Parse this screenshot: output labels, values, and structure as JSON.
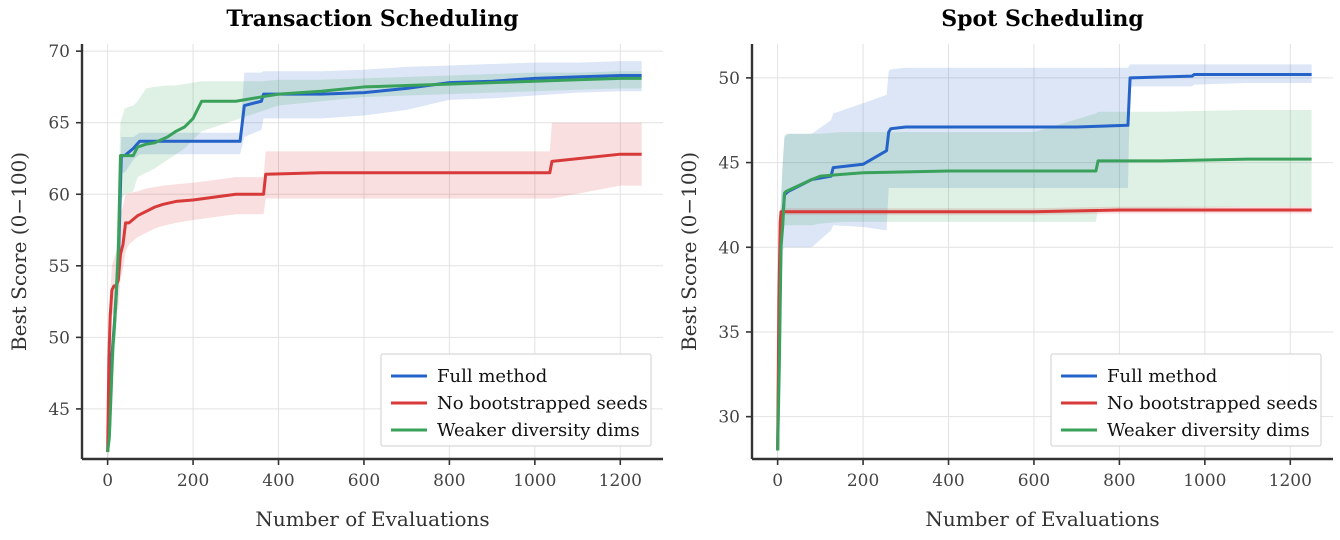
{
  "chart_data": [
    {
      "type": "line",
      "title": "Transaction Scheduling",
      "xlabel": "Number of Evaluations",
      "ylabel": "Best Score (0−100)",
      "xlim": [
        -60,
        1300
      ],
      "ylim": [
        41.5,
        70.5
      ],
      "xticks": [
        0,
        200,
        400,
        600,
        800,
        1000,
        1200
      ],
      "yticks": [
        45,
        50,
        55,
        60,
        65,
        70
      ],
      "grid": true,
      "legend_position": "lower right",
      "series": [
        {
          "name": "Full method",
          "color": "#2563c9",
          "x": [
            0,
            5,
            8,
            12,
            16,
            20,
            26,
            32,
            40,
            60,
            75,
            100,
            150,
            200,
            250,
            310,
            320,
            360,
            365,
            500,
            600,
            700,
            800,
            900,
            1000,
            1100,
            1200,
            1250
          ],
          "y": [
            42,
            44,
            48,
            49.5,
            51,
            53,
            56,
            62.7,
            62.7,
            63.2,
            63.7,
            63.7,
            63.7,
            63.7,
            63.7,
            63.7,
            66.2,
            66.5,
            67.0,
            67.0,
            67.1,
            67.4,
            67.8,
            67.9,
            68.1,
            68.2,
            68.3,
            68.3
          ],
          "upper": [
            43,
            45,
            49.5,
            51,
            53,
            55,
            58,
            64,
            64,
            64,
            64.3,
            64.3,
            64.3,
            64.3,
            64.3,
            64.3,
            68.5,
            68.5,
            68.6,
            68.6,
            68.7,
            68.9,
            69.0,
            69.1,
            69.2,
            69.2,
            69.3,
            69.3
          ],
          "lower": [
            41.5,
            43,
            46.5,
            48,
            49.5,
            51,
            54,
            61.5,
            61.5,
            62.4,
            62.8,
            62.8,
            62.8,
            62.8,
            62.8,
            62.8,
            64.0,
            64.5,
            65.3,
            65.3,
            65.5,
            65.9,
            66.6,
            66.7,
            66.9,
            67.1,
            67.2,
            67.2
          ]
        },
        {
          "name": "No bootstrapped seeds",
          "color": "#d83a3a",
          "x": [
            0,
            3,
            6,
            10,
            15,
            20,
            25,
            30,
            36,
            42,
            50,
            70,
            90,
            110,
            130,
            160,
            200,
            250,
            300,
            365,
            370,
            500,
            600,
            700,
            800,
            900,
            1000,
            1035,
            1040,
            1200,
            1250
          ],
          "y": [
            42,
            48.5,
            51.5,
            53.3,
            53.6,
            53.6,
            54.0,
            55.8,
            56.5,
            58.0,
            58.0,
            58.5,
            58.8,
            59.1,
            59.3,
            59.5,
            59.6,
            59.8,
            60.0,
            60.0,
            61.4,
            61.5,
            61.5,
            61.5,
            61.5,
            61.5,
            61.5,
            61.5,
            62.3,
            62.8,
            62.8
          ],
          "upper": [
            43,
            50,
            53,
            55,
            55.5,
            56,
            57,
            58.5,
            59.2,
            60.0,
            60.1,
            60.2,
            60.4,
            60.5,
            60.6,
            60.7,
            60.8,
            61.0,
            61.2,
            61.2,
            63.0,
            63.0,
            63.0,
            63.0,
            63.0,
            63.0,
            63.0,
            63.0,
            65.0,
            65.0,
            65.0
          ],
          "lower": [
            41.5,
            47,
            50,
            51.5,
            51.8,
            51.8,
            52.0,
            54.0,
            54.8,
            56.0,
            56.5,
            57.0,
            57.3,
            57.6,
            57.8,
            58.0,
            58.2,
            58.4,
            58.6,
            58.6,
            59.7,
            59.7,
            59.7,
            59.7,
            59.7,
            59.7,
            59.7,
            59.7,
            59.7,
            60.6,
            60.6
          ]
        },
        {
          "name": "Weaker diversity dims",
          "color": "#3aa15b",
          "x": [
            0,
            4,
            8,
            12,
            16,
            20,
            25,
            30,
            40,
            60,
            70,
            90,
            110,
            140,
            160,
            180,
            200,
            220,
            300,
            360,
            400,
            500,
            600,
            700,
            800,
            900,
            1000,
            1100,
            1200,
            1250
          ],
          "y": [
            42,
            43,
            46,
            49.2,
            50.8,
            53,
            56,
            62.7,
            62.7,
            62.7,
            63.3,
            63.5,
            63.6,
            64.0,
            64.4,
            64.7,
            65.3,
            66.5,
            66.5,
            66.8,
            67.0,
            67.2,
            67.5,
            67.6,
            67.7,
            67.8,
            67.9,
            68.0,
            68.1,
            68.1
          ],
          "upper": [
            43,
            45,
            48,
            51,
            53,
            56,
            60,
            65,
            66,
            66.2,
            66.5,
            67.4,
            67.5,
            67.6,
            67.6,
            67.7,
            67.8,
            67.9,
            67.9,
            67.9,
            68.0,
            68.0,
            68.1,
            68.2,
            68.3,
            68.4,
            68.5,
            68.5,
            68.6,
            68.6
          ],
          "lower": [
            41.5,
            42,
            44.5,
            47,
            48.5,
            50.5,
            53.5,
            59.5,
            60,
            60.2,
            61.2,
            61.5,
            61.8,
            62.4,
            62.8,
            63.2,
            63.8,
            64.4,
            65.2,
            65.8,
            66.2,
            66.5,
            66.8,
            66.9,
            67.0,
            67.1,
            67.2,
            67.3,
            67.4,
            67.4
          ]
        }
      ]
    },
    {
      "type": "line",
      "title": "Spot Scheduling",
      "xlabel": "Number of Evaluations",
      "ylabel": "Best Score (0−100)",
      "xlim": [
        -60,
        1300
      ],
      "ylim": [
        27.5,
        52
      ],
      "xticks": [
        0,
        200,
        400,
        600,
        800,
        1000,
        1200
      ],
      "yticks": [
        30,
        35,
        40,
        45,
        50
      ],
      "grid": true,
      "legend_position": "lower right",
      "series": [
        {
          "name": "Full method",
          "color": "#2563c9",
          "x": [
            0,
            4,
            8,
            12,
            16,
            25,
            80,
            125,
            130,
            200,
            255,
            260,
            265,
            300,
            500,
            700,
            820,
            825,
            970,
            975,
            1100,
            1250
          ],
          "y": [
            28,
            35,
            40.5,
            41.7,
            43.1,
            43.3,
            44.0,
            44.2,
            44.7,
            44.9,
            45.7,
            46.8,
            47.0,
            47.1,
            47.1,
            47.1,
            47.2,
            50.0,
            50.1,
            50.2,
            50.2,
            50.2
          ],
          "upper": [
            29,
            38,
            43,
            45,
            46.5,
            46.7,
            46.7,
            47.5,
            47.9,
            48.5,
            49.0,
            50.4,
            50.5,
            50.6,
            50.6,
            50.6,
            50.6,
            50.8,
            50.8,
            50.8,
            50.8,
            50.8
          ],
          "lower": [
            27.5,
            32,
            38,
            39.8,
            40.0,
            40.0,
            40.0,
            41.0,
            41.3,
            41.2,
            41.0,
            43.5,
            43.5,
            43.5,
            43.5,
            43.5,
            43.5,
            49.5,
            49.5,
            49.6,
            49.7,
            49.7
          ]
        },
        {
          "name": "No bootstrapped seeds",
          "color": "#d83a3a",
          "x": [
            0,
            3,
            6,
            8,
            200,
            400,
            600,
            800,
            1000,
            1250
          ],
          "y": [
            28,
            37,
            41.5,
            42.1,
            42.1,
            42.1,
            42.1,
            42.2,
            42.2,
            42.2
          ],
          "upper": [
            29,
            40,
            42.5,
            42.3,
            42.3,
            42.3,
            42.3,
            42.4,
            42.4,
            42.4
          ],
          "lower": [
            27.5,
            33,
            40,
            41.9,
            41.9,
            41.9,
            41.9,
            42.0,
            42.0,
            42.0
          ],
          "y_labels_hidden": true
        },
        {
          "name": "Weaker diversity dims",
          "color": "#3aa15b",
          "x": [
            0,
            4,
            8,
            12,
            16,
            20,
            80,
            100,
            150,
            200,
            400,
            600,
            745,
            750,
            900,
            1100,
            1250
          ],
          "y": [
            28,
            33,
            40.0,
            41.3,
            43.2,
            43.3,
            44.0,
            44.2,
            44.3,
            44.4,
            44.5,
            44.5,
            44.5,
            45.1,
            45.1,
            45.2,
            45.2
          ],
          "upper": [
            29,
            36,
            43,
            45,
            46.6,
            46.7,
            46.7,
            46.7,
            46.8,
            46.8,
            46.8,
            46.8,
            47.9,
            48.0,
            48.0,
            48.1,
            48.1
          ],
          "lower": [
            27.5,
            31,
            39.7,
            40.5,
            41.3,
            41.3,
            41.3,
            41.4,
            41.5,
            41.5,
            41.5,
            41.5,
            41.5,
            42.3,
            42.3,
            42.4,
            42.4
          ]
        }
      ]
    }
  ]
}
